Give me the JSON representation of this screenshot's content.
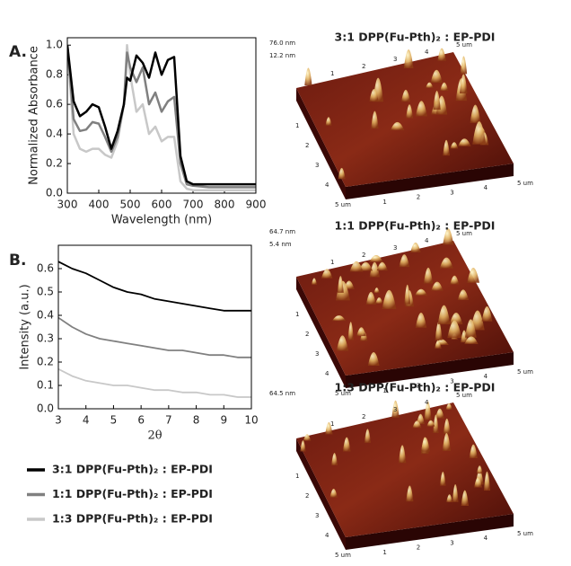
{
  "chart_data": [
    {
      "type": "line",
      "panel_label": "A.",
      "xlabel": "Wavelength (nm)",
      "ylabel": "Normalized Absorbance",
      "x": [
        300,
        320,
        340,
        360,
        380,
        400,
        420,
        440,
        460,
        480,
        490,
        500,
        520,
        540,
        560,
        580,
        600,
        620,
        640,
        660,
        680,
        700,
        750,
        800,
        850,
        900
      ],
      "series": [
        {
          "color": "#000000",
          "values": [
            1.0,
            0.62,
            0.52,
            0.55,
            0.6,
            0.58,
            0.45,
            0.3,
            0.42,
            0.6,
            0.78,
            0.76,
            0.93,
            0.88,
            0.78,
            0.95,
            0.8,
            0.9,
            0.92,
            0.25,
            0.08,
            0.06,
            0.06,
            0.06,
            0.06,
            0.06
          ]
        },
        {
          "color": "#808080",
          "values": [
            1.0,
            0.5,
            0.42,
            0.43,
            0.48,
            0.47,
            0.38,
            0.28,
            0.38,
            0.6,
            0.95,
            0.85,
            0.75,
            0.85,
            0.6,
            0.68,
            0.55,
            0.62,
            0.65,
            0.2,
            0.06,
            0.05,
            0.04,
            0.04,
            0.04,
            0.04
          ]
        },
        {
          "color": "#c8c8c8",
          "values": [
            1.0,
            0.4,
            0.3,
            0.28,
            0.3,
            0.3,
            0.26,
            0.24,
            0.35,
            0.6,
            1.0,
            0.8,
            0.55,
            0.6,
            0.4,
            0.45,
            0.35,
            0.38,
            0.38,
            0.08,
            0.03,
            0.02,
            0.02,
            0.02,
            0.02,
            0.02
          ]
        }
      ],
      "xlim": [
        300,
        900
      ],
      "xticks": [
        300,
        400,
        500,
        600,
        700,
        800,
        900
      ],
      "ylim": [
        0,
        1.05
      ],
      "yticks": [
        {
          "value": 0,
          "label": "0.0"
        },
        0.2,
        0.4,
        0.6,
        0.8,
        {
          "value": 1,
          "label": "1.0"
        }
      ]
    },
    {
      "type": "line",
      "panel_label": "B.",
      "xlabel": "2θ",
      "ylabel": "Intensity (a.u.)",
      "x": [
        3,
        3.5,
        4,
        4.5,
        5,
        5.5,
        6,
        6.5,
        7,
        7.5,
        8,
        8.5,
        9,
        9.5,
        10
      ],
      "series": [
        {
          "name": "3:1 DPP(Fu-Pth)₂ : EP-PDI",
          "color": "#000000",
          "values": [
            0.63,
            0.6,
            0.58,
            0.55,
            0.52,
            0.5,
            0.49,
            0.47,
            0.46,
            0.45,
            0.44,
            0.43,
            0.42,
            0.42,
            0.42
          ]
        },
        {
          "name": "1:1 DPP(Fu-Pth)₂ : EP-PDI",
          "color": "#808080",
          "values": [
            0.39,
            0.35,
            0.32,
            0.3,
            0.29,
            0.28,
            0.27,
            0.26,
            0.25,
            0.25,
            0.24,
            0.23,
            0.23,
            0.22,
            0.22
          ]
        },
        {
          "name": "1:3 DPP(Fu-Pth)₂ : EP-PDI",
          "color": "#c8c8c8",
          "values": [
            0.17,
            0.14,
            0.12,
            0.11,
            0.1,
            0.1,
            0.09,
            0.08,
            0.08,
            0.07,
            0.07,
            0.06,
            0.06,
            0.05,
            0.05
          ]
        }
      ],
      "xlim": [
        3,
        10
      ],
      "xticks": [
        3,
        4,
        5,
        6,
        7,
        8,
        9,
        10
      ],
      "ylim": [
        0,
        0.7
      ],
      "yticks": [
        {
          "value": 0,
          "label": "0.0"
        },
        0.1,
        0.2,
        0.3,
        0.4,
        0.5,
        0.6
      ]
    }
  ],
  "afm_images": [
    {
      "title": "3:1 DPP(Fu-Pth)₂ : EP-PDI",
      "z_labels": [
        "76.0 nm",
        "12.2 nm"
      ]
    },
    {
      "title": "1:1 DPP(Fu-Pth)₂ : EP-PDI",
      "z_labels": [
        "64.7 nm",
        "5.4 nm"
      ]
    },
    {
      "title": "1:3 DPP(Fu-Pth)₂ : EP-PDI",
      "z_labels": [
        "64.5 nm"
      ]
    }
  ],
  "afm_axis_labels": [
    "1",
    "2",
    "3",
    "4",
    "5 um"
  ]
}
